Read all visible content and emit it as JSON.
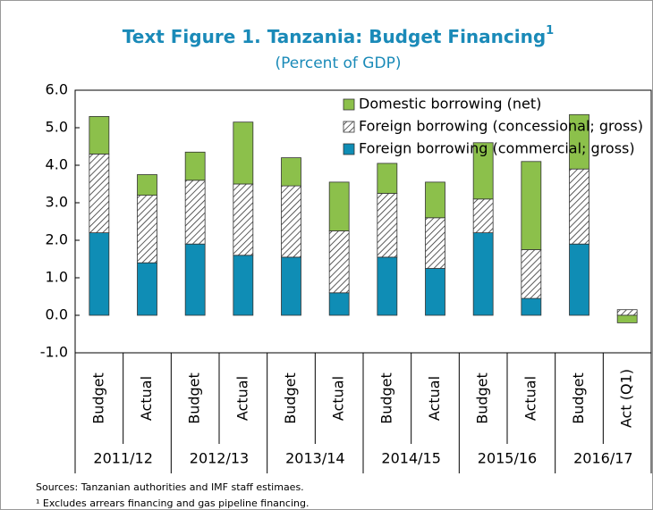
{
  "chart_data": {
    "type": "stacked_bar",
    "title": "Text Figure 1. Tanzania: Budget Financing",
    "title_superscript": "1",
    "subtitle": "(Percent of GDP)",
    "categories": [
      "Budget",
      "Actual",
      "Budget",
      "Actual",
      "Budget",
      "Actual",
      "Budget",
      "Actual",
      "Budget",
      "Actual",
      "Budget",
      "Act (Q1)"
    ],
    "groups": [
      "2011/12",
      "2012/13",
      "2013/14",
      "2014/15",
      "2015/16",
      "2016/17"
    ],
    "series": [
      {
        "name": "Domestic borrowing (net)",
        "color": "#8cc04b",
        "values": [
          1.0,
          0.55,
          0.75,
          1.65,
          0.75,
          1.3,
          0.8,
          0.95,
          1.5,
          2.35,
          1.45,
          -0.2
        ]
      },
      {
        "name": "Foreign borrowing (concessional; gross)",
        "color": "#ffffff",
        "hatch": true,
        "values": [
          2.1,
          1.8,
          1.7,
          1.9,
          1.9,
          1.65,
          1.7,
          1.35,
          0.9,
          1.3,
          2.0,
          0.15
        ]
      },
      {
        "name": "Foreign borrowing (commercial; gross)",
        "color": "#0f8db5",
        "values": [
          2.2,
          1.4,
          1.9,
          1.6,
          1.55,
          0.6,
          1.55,
          1.25,
          2.2,
          0.45,
          1.9,
          0
        ]
      }
    ],
    "ylim": [
      -1,
      6
    ],
    "yticks": [
      {
        "value": -1,
        "label": "-1.0"
      },
      {
        "value": 0,
        "label": "0.0"
      },
      {
        "value": 1,
        "label": "1.0"
      },
      {
        "value": 2,
        "label": "2.0"
      },
      {
        "value": 3,
        "label": "3.0"
      },
      {
        "value": 4,
        "label": "4.0"
      },
      {
        "value": 5,
        "label": "5.0"
      },
      {
        "value": 6,
        "label": "6.0"
      }
    ],
    "notes": [
      "Sources: Tanzanian authorities and IMF staff estimaes.",
      "¹ Excludes arrears financing and gas pipeline financing."
    ]
  }
}
